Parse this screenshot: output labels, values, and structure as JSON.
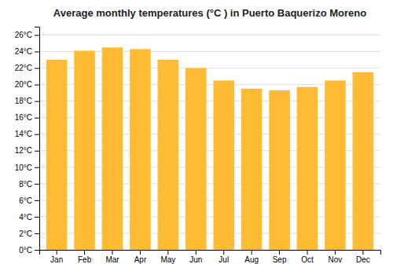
{
  "chart_data": {
    "type": "bar",
    "title": "Average monthly temperatures (°C ) in Puerto Baquerizo Moreno",
    "categories": [
      "Jan",
      "Feb",
      "Mar",
      "Apr",
      "May",
      "Jun",
      "Jul",
      "Aug",
      "Sep",
      "Oct",
      "Nov",
      "Dec"
    ],
    "values": [
      23.0,
      24.1,
      24.5,
      24.3,
      23.0,
      22.0,
      20.5,
      19.5,
      19.3,
      19.7,
      20.5,
      21.5
    ],
    "color": "#FFBB33",
    "ylim": [
      0,
      27
    ],
    "yticks": [
      {
        "value": 0,
        "label": "0°C"
      },
      {
        "value": 2,
        "label": "2°C"
      },
      {
        "value": 4,
        "label": "4°C"
      },
      {
        "value": 6,
        "label": "6°C"
      },
      {
        "value": 8,
        "label": "8°C"
      },
      {
        "value": 10,
        "label": "10°C"
      },
      {
        "value": 12,
        "label": "12°C"
      },
      {
        "value": 14,
        "label": "14°C"
      },
      {
        "value": 16,
        "label": "16°C"
      },
      {
        "value": 18,
        "label": "18°C"
      },
      {
        "value": 20,
        "label": "20°C"
      },
      {
        "value": 22,
        "label": "22°C"
      },
      {
        "value": 24,
        "label": "24°C"
      },
      {
        "value": 26,
        "label": "26°C"
      }
    ],
    "grid": true
  }
}
